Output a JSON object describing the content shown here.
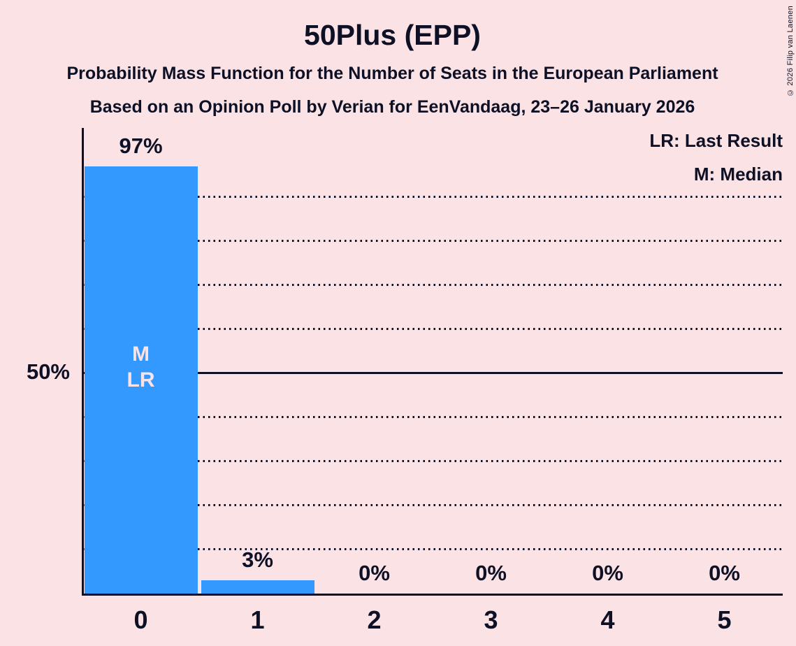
{
  "copyright": "© 2026 Filip van Laenen",
  "colors": {
    "background": "#fbe2e5",
    "bar": "#3399ff",
    "text": "#0e1126",
    "bar_text": "#fbe2e5"
  },
  "chart_data": {
    "type": "bar",
    "title": "50Plus (EPP)",
    "subtitle_lines": [
      "Probability Mass Function for the Number of Seats in the European Parliament",
      "Based on an Opinion Poll by Verian for EenVandaag, 23–26 January 2026"
    ],
    "legend": {
      "lr": "LR: Last Result",
      "m": "M: Median"
    },
    "categories": [
      "0",
      "1",
      "2",
      "3",
      "4",
      "5"
    ],
    "values": [
      97,
      3,
      0,
      0,
      0,
      0
    ],
    "value_labels": [
      "97%",
      "3%",
      "0%",
      "0%",
      "0%",
      "0%"
    ],
    "annotations": [
      {
        "category_index": 0,
        "lines": [
          "M",
          "LR"
        ]
      }
    ],
    "y_axis_tick": "50%",
    "xlabel": "",
    "ylabel": "",
    "ylim": [
      0,
      100
    ],
    "gridlines_dotted_pct": [
      10,
      20,
      30,
      40,
      60,
      70,
      80,
      90
    ],
    "gridline_solid_pct": 50,
    "grid": "horizontal-dotted",
    "legend_position": "top-right"
  }
}
